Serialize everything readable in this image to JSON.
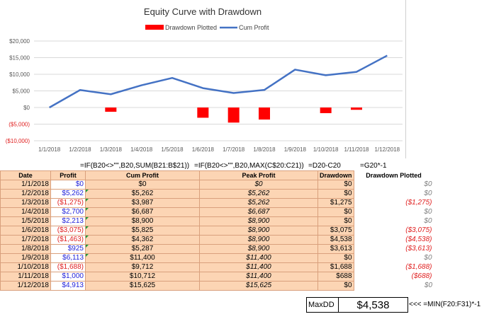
{
  "chart_data": {
    "type": "bar+line",
    "title": "Equity Curve with Drawdown",
    "categories": [
      "1/1/2018",
      "1/2/2018",
      "1/3/2018",
      "1/4/2018",
      "1/5/2018",
      "1/6/2018",
      "1/7/2018",
      "1/8/2018",
      "1/9/2018",
      "1/10/2018",
      "1/11/2018",
      "1/12/2018"
    ],
    "series": [
      {
        "name": "Drawdown Plotted",
        "kind": "bar",
        "color": "#ff0000",
        "values": [
          0,
          0,
          -1275,
          0,
          0,
          -3075,
          -4538,
          -3613,
          0,
          -1688,
          -688,
          0
        ]
      },
      {
        "name": "Cum Profit",
        "kind": "line",
        "color": "#4472c4",
        "values": [
          0,
          5262,
          3987,
          6687,
          8900,
          5825,
          4362,
          5287,
          11400,
          9712,
          10712,
          15625
        ]
      }
    ],
    "y_ticks": [
      "$20,000",
      "$15,000",
      "$10,000",
      "$5,000",
      "$0",
      "($5,000)",
      "($10,000)"
    ],
    "y_tick_values": [
      20000,
      15000,
      10000,
      5000,
      0,
      -5000,
      -10000
    ],
    "ylim": [
      -10000,
      20000
    ],
    "legend": "top",
    "grid": true
  },
  "formulas": {
    "f1": "=IF(B20<>\"\",B20,SUM(B21:B$21))",
    "f2": "=IF(B20<>\"\",B20,MAX(C$20:C21))",
    "f3": "=D20-C20",
    "f4": "=G20*-1"
  },
  "table": {
    "headers": [
      "Date",
      "Profit",
      "Cum Profit",
      "Peak Profit",
      "Drawdown",
      "Drawdown Plotted"
    ],
    "rows": [
      {
        "date": "1/1/2018",
        "profit": "$0",
        "cum": "$0",
        "peak": "$0",
        "dd": "$0",
        "ddp": "$0"
      },
      {
        "date": "1/2/2018",
        "profit": "$5,262",
        "cum": "$5,262",
        "peak": "$5,262",
        "dd": "$0",
        "ddp": "$0"
      },
      {
        "date": "1/3/2018",
        "profit": "($1,275)",
        "cum": "$3,987",
        "peak": "$5,262",
        "dd": "$1,275",
        "ddp": "($1,275)"
      },
      {
        "date": "1/4/2018",
        "profit": "$2,700",
        "cum": "$6,687",
        "peak": "$6,687",
        "dd": "$0",
        "ddp": "$0"
      },
      {
        "date": "1/5/2018",
        "profit": "$2,213",
        "cum": "$8,900",
        "peak": "$8,900",
        "dd": "$0",
        "ddp": "$0"
      },
      {
        "date": "1/6/2018",
        "profit": "($3,075)",
        "cum": "$5,825",
        "peak": "$8,900",
        "dd": "$3,075",
        "ddp": "($3,075)"
      },
      {
        "date": "1/7/2018",
        "profit": "($1,463)",
        "cum": "$4,362",
        "peak": "$8,900",
        "dd": "$4,538",
        "ddp": "($4,538)"
      },
      {
        "date": "1/8/2018",
        "profit": "$925",
        "cum": "$5,287",
        "peak": "$8,900",
        "dd": "$3,613",
        "ddp": "($3,613)"
      },
      {
        "date": "1/9/2018",
        "profit": "$6,113",
        "cum": "$11,400",
        "peak": "$11,400",
        "dd": "$0",
        "ddp": "$0"
      },
      {
        "date": "1/10/2018",
        "profit": "($1,688)",
        "cum": "$9,712",
        "peak": "$11,400",
        "dd": "$1,688",
        "ddp": "($1,688)"
      },
      {
        "date": "1/11/2018",
        "profit": "$1,000",
        "cum": "$10,712",
        "peak": "$11,400",
        "dd": "$688",
        "ddp": "($688)"
      },
      {
        "date": "1/12/2018",
        "profit": "$4,913",
        "cum": "$15,625",
        "peak": "$15,625",
        "dd": "$0",
        "ddp": "$0"
      }
    ]
  },
  "summary": {
    "label": "MaxDD",
    "value": "$4,538",
    "note": "<<<  =MIN(F20:F31)*-1"
  },
  "colors": {
    "cell_fill": "#fcd5b4",
    "positive": "#1f1fd8",
    "negative": "#e02020",
    "bar": "#ff0000",
    "line": "#4472c4"
  }
}
